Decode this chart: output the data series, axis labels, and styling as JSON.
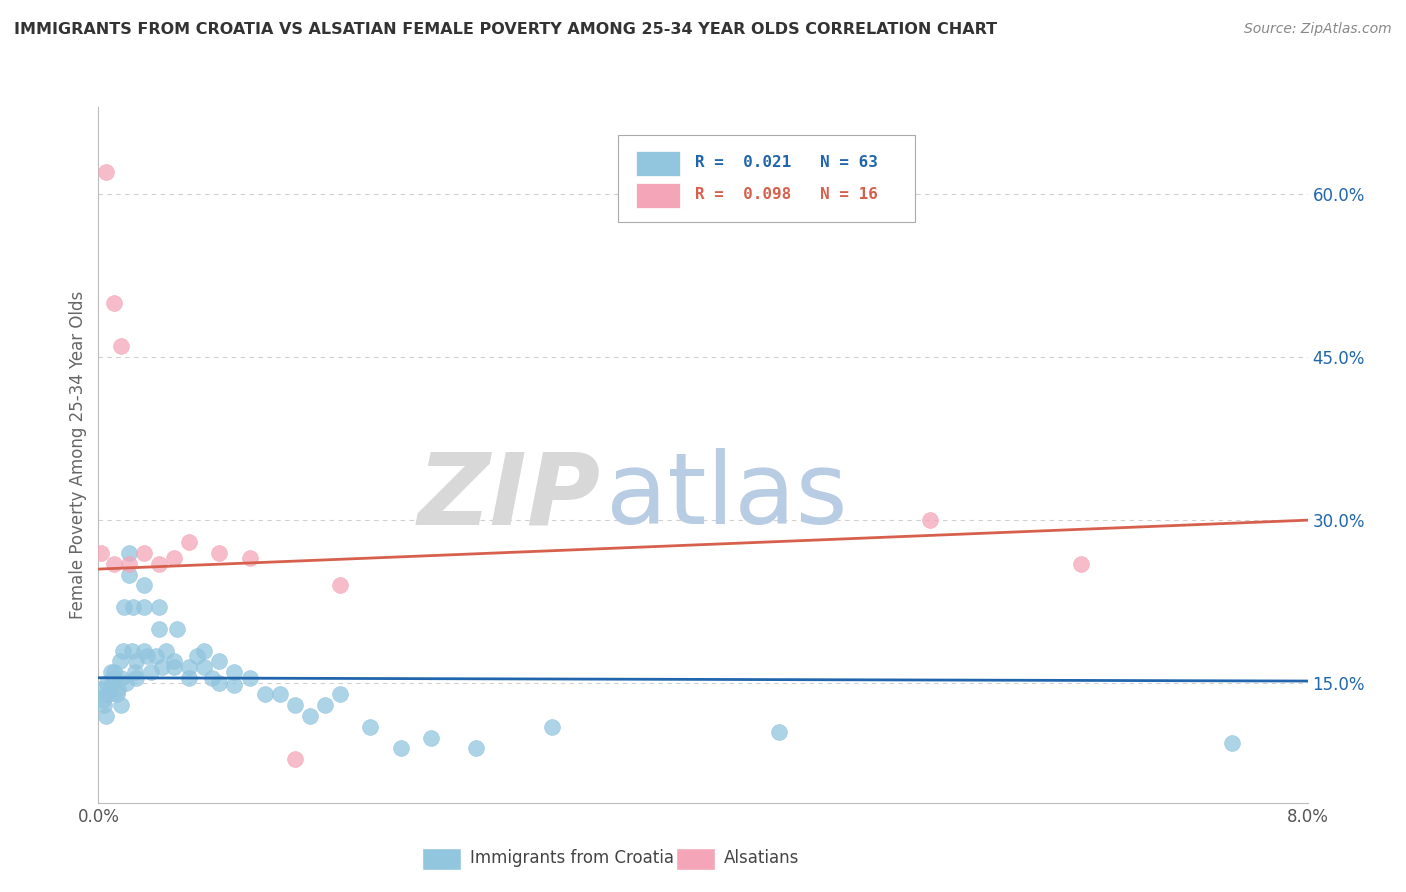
{
  "title": "IMMIGRANTS FROM CROATIA VS ALSATIAN FEMALE POVERTY AMONG 25-34 YEAR OLDS CORRELATION CHART",
  "source": "Source: ZipAtlas.com",
  "ylabel": "Female Poverty Among 25-34 Year Olds",
  "legend_labels": [
    "Immigrants from Croatia",
    "Alsatians"
  ],
  "r_values": [
    0.021,
    0.098
  ],
  "n_values": [
    63,
    16
  ],
  "xlim": [
    0.0,
    0.08
  ],
  "ylim": [
    0.04,
    0.68
  ],
  "yticks": [
    0.15,
    0.3,
    0.45,
    0.6
  ],
  "ytick_labels": [
    "15.0%",
    "30.0%",
    "45.0%",
    "60.0%"
  ],
  "xticks": [
    0.0,
    0.08
  ],
  "xtick_labels": [
    "0.0%",
    "8.0%"
  ],
  "color_blue": "#92c5de",
  "color_pink": "#f4a6b8",
  "color_blue_line": "#2166ac",
  "color_pink_line": "#d6604d",
  "watermark_zip": "ZIP",
  "watermark_atlas": "atlas",
  "background_color": "#ffffff",
  "grid_color": "#d0d0d0",
  "blue_x": [
    0.0002,
    0.0003,
    0.0004,
    0.0005,
    0.0005,
    0.0006,
    0.0007,
    0.0008,
    0.0009,
    0.001,
    0.001,
    0.0012,
    0.0013,
    0.0014,
    0.0015,
    0.0015,
    0.0016,
    0.0017,
    0.0018,
    0.002,
    0.002,
    0.0022,
    0.0023,
    0.0024,
    0.0025,
    0.0025,
    0.003,
    0.003,
    0.003,
    0.0032,
    0.0035,
    0.0038,
    0.004,
    0.004,
    0.0042,
    0.0045,
    0.005,
    0.005,
    0.0052,
    0.006,
    0.006,
    0.0065,
    0.007,
    0.007,
    0.0075,
    0.008,
    0.008,
    0.009,
    0.009,
    0.01,
    0.011,
    0.012,
    0.013,
    0.014,
    0.015,
    0.016,
    0.018,
    0.02,
    0.022,
    0.025,
    0.03,
    0.045,
    0.075
  ],
  "blue_y": [
    0.145,
    0.135,
    0.13,
    0.12,
    0.14,
    0.15,
    0.14,
    0.16,
    0.15,
    0.155,
    0.16,
    0.14,
    0.145,
    0.17,
    0.13,
    0.155,
    0.18,
    0.22,
    0.15,
    0.25,
    0.27,
    0.18,
    0.22,
    0.16,
    0.155,
    0.17,
    0.24,
    0.22,
    0.18,
    0.175,
    0.16,
    0.175,
    0.22,
    0.2,
    0.165,
    0.18,
    0.17,
    0.165,
    0.2,
    0.165,
    0.155,
    0.175,
    0.18,
    0.165,
    0.155,
    0.15,
    0.17,
    0.148,
    0.16,
    0.155,
    0.14,
    0.14,
    0.13,
    0.12,
    0.13,
    0.14,
    0.11,
    0.09,
    0.1,
    0.09,
    0.11,
    0.105,
    0.095
  ],
  "pink_x": [
    0.0002,
    0.0005,
    0.001,
    0.001,
    0.0015,
    0.002,
    0.003,
    0.004,
    0.005,
    0.006,
    0.008,
    0.01,
    0.013,
    0.016,
    0.055,
    0.065
  ],
  "pink_y": [
    0.27,
    0.62,
    0.5,
    0.26,
    0.46,
    0.26,
    0.27,
    0.26,
    0.265,
    0.28,
    0.27,
    0.265,
    0.08,
    0.24,
    0.3,
    0.26
  ],
  "blue_trend_y": [
    0.155,
    0.152
  ],
  "pink_trend_y": [
    0.255,
    0.3
  ]
}
